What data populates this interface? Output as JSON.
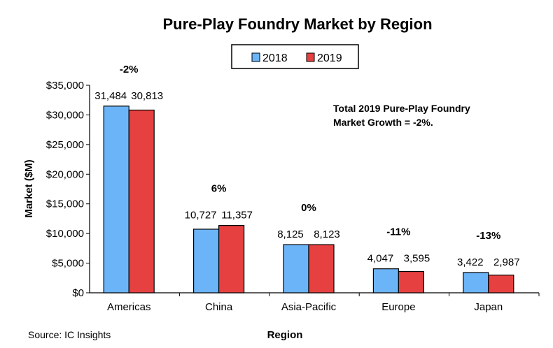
{
  "chart_data": {
    "type": "bar",
    "title": "Pure-Play Foundry Market by Region",
    "xlabel": "Region",
    "ylabel": "Market ($M)",
    "ylim": [
      0,
      35000
    ],
    "yticks": [
      0,
      5000,
      10000,
      15000,
      20000,
      25000,
      30000,
      35000
    ],
    "ytick_labels": [
      "$0",
      "$5,000",
      "$10,000",
      "$15,000",
      "$20,000",
      "$25,000",
      "$30,000",
      "$35,000"
    ],
    "categories": [
      "Americas",
      "China",
      "Asia-Pacific",
      "Europe",
      "Japan"
    ],
    "series": [
      {
        "name": "2018",
        "color": "#6CB4F8",
        "values": [
          31484,
          10727,
          8125,
          4047,
          3422
        ],
        "labels": [
          "31,484",
          "10,727",
          "8,125",
          "4,047",
          "3,422"
        ]
      },
      {
        "name": "2019",
        "color": "#E64040",
        "values": [
          30813,
          11357,
          8123,
          3595,
          2987
        ],
        "labels": [
          "30,813",
          "11,357",
          "8,123",
          "3,595",
          "2,987"
        ]
      }
    ],
    "growth_labels": [
      "-2%",
      "6%",
      "0%",
      "-11%",
      "-13%"
    ],
    "legend_placement": "top-center",
    "grid": false,
    "annotation": [
      "Total 2019 Pure-Play Foundry",
      "Market Growth = -2%."
    ],
    "source": "Source: IC Insights"
  }
}
